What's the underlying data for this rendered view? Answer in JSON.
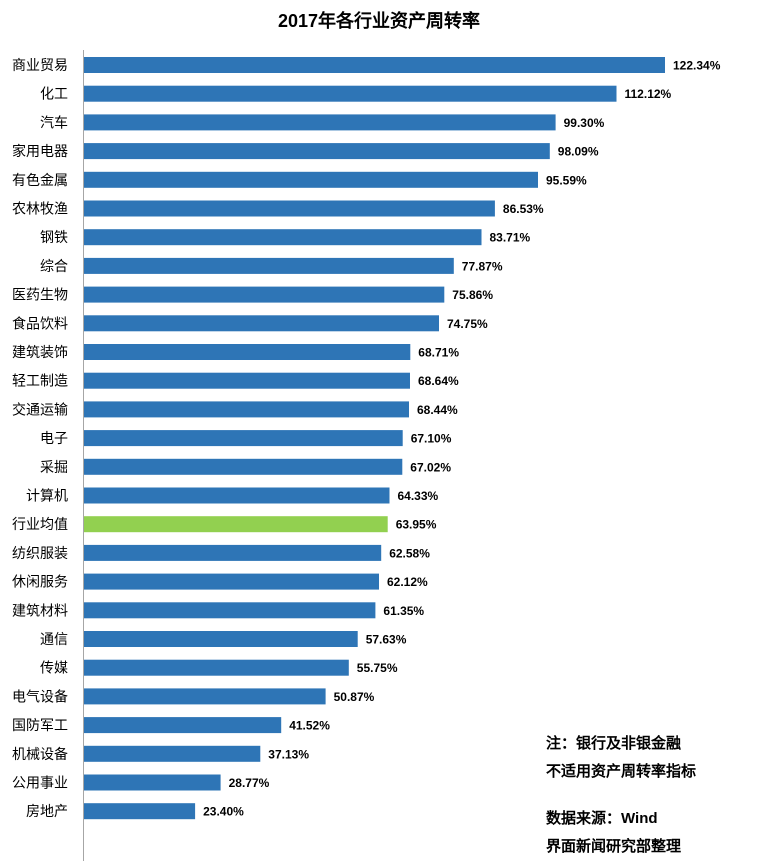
{
  "chart_data": {
    "type": "bar",
    "orientation": "horizontal",
    "title": "2017年各行业资产周转率",
    "xlabel": "",
    "ylabel": "",
    "xlim": [
      0,
      130
    ],
    "value_format": "percent-2dp",
    "categories": [
      "商业贸易",
      "化工",
      "汽车",
      "家用电器",
      "有色金属",
      "农林牧渔",
      "钢铁",
      "综合",
      "医药生物",
      "食品饮料",
      "建筑装饰",
      "轻工制造",
      "交通运输",
      "电子",
      "采掘",
      "计算机",
      "行业均值",
      "纺织服装",
      "休闲服务",
      "建筑材料",
      "通信",
      "传媒",
      "电气设备",
      "国防军工",
      "机械设备",
      "公用事业",
      "房地产"
    ],
    "values": [
      122.34,
      112.12,
      99.3,
      98.09,
      95.59,
      86.53,
      83.71,
      77.87,
      75.86,
      74.75,
      68.71,
      68.64,
      68.44,
      67.1,
      67.02,
      64.33,
      63.95,
      62.58,
      62.12,
      61.35,
      57.63,
      55.75,
      50.87,
      41.52,
      37.13,
      28.77,
      23.4
    ],
    "value_labels": [
      "122.34%",
      "112.12%",
      "99.30%",
      "98.09%",
      "95.59%",
      "86.53%",
      "83.71%",
      "77.87%",
      "75.86%",
      "74.75%",
      "68.71%",
      "68.64%",
      "68.44%",
      "67.10%",
      "67.02%",
      "64.33%",
      "63.95%",
      "62.58%",
      "62.12%",
      "61.35%",
      "57.63%",
      "55.75%",
      "50.87%",
      "41.52%",
      "37.13%",
      "28.77%",
      "23.40%"
    ],
    "highlight_category": "行业均值",
    "colors": {
      "bar": "#2e75b6",
      "highlight": "#92d050",
      "axis": "#a6a6a6"
    },
    "grid": false,
    "legend": "none"
  },
  "notes": {
    "line1": "注：银行及非银金融",
    "line2": "不适用资产周转率指标",
    "source": "数据来源：Wind",
    "org": "界面新闻研究部整理"
  }
}
